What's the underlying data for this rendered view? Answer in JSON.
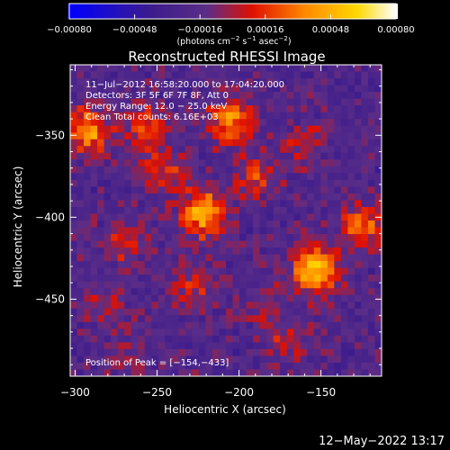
{
  "chart_data": {
    "type": "heatmap",
    "title": "Reconstructed RHESSI Image",
    "xlabel": "Heliocentric X (arcsec)",
    "ylabel": "Heliocentric Y (arcsec)",
    "xlim": [
      -303,
      -113
    ],
    "ylim": [
      -497,
      -307
    ],
    "x_ticks": [
      -300,
      -250,
      -200,
      -150
    ],
    "x_tick_labels": [
      "−300",
      "−250",
      "−200",
      "−150"
    ],
    "y_ticks": [
      -350,
      -400,
      -450
    ],
    "y_tick_labels": [
      "−350",
      "−400",
      "−450"
    ],
    "colorbar": {
      "min": -0.0008,
      "max": 0.0008,
      "ticks": [
        -0.0008,
        -0.00048,
        -0.00016,
        0.00016,
        0.00048,
        0.0008
      ],
      "tick_labels": [
        "−0.00080",
        "−0.00048",
        "−0.00016",
        "0.00016",
        "0.00048",
        "0.00080"
      ],
      "unit_parts": [
        "(photons cm",
        "−2",
        " s",
        "−1",
        " asec",
        "−2",
        ")"
      ],
      "colormap": [
        "#0000ff",
        "#3c1c8c",
        "#5a2d88",
        "#e01000",
        "#ff8800",
        "#ffd800",
        "#ffffff"
      ]
    },
    "annotations": [
      "11−Jul−2012 16:58:20.000 to 17:04:20.000",
      "Detectors: 3F 5F 6F 7F 8F, Att 0",
      "Energy Range: 12.0 − 25.0 keV",
      "Clean     Total counts: 6.16E+03"
    ],
    "peak_label": "Position of Peak = [−154,−433]",
    "peak": [
      -154,
      -433
    ],
    "sources": [
      {
        "x": -154,
        "y": -433,
        "intensity": 0.0008
      },
      {
        "x": -222,
        "y": -398,
        "intensity": 0.0007
      },
      {
        "x": -292,
        "y": -347,
        "intensity": 0.0006
      },
      {
        "x": -205,
        "y": -343,
        "intensity": 0.0006
      },
      {
        "x": -125,
        "y": -405,
        "intensity": 0.00048
      },
      {
        "x": -255,
        "y": -345,
        "intensity": 0.0004
      },
      {
        "x": -245,
        "y": -372,
        "intensity": 0.00032
      },
      {
        "x": -190,
        "y": -375,
        "intensity": 0.00032
      },
      {
        "x": -270,
        "y": -415,
        "intensity": 0.0003
      },
      {
        "x": -230,
        "y": -445,
        "intensity": 0.0003
      },
      {
        "x": -170,
        "y": -478,
        "intensity": 0.00024
      },
      {
        "x": -283,
        "y": -452,
        "intensity": 0.00024
      },
      {
        "x": -185,
        "y": -455,
        "intensity": 0.0002
      },
      {
        "x": -160,
        "y": -355,
        "intensity": 0.00022
      },
      {
        "x": -270,
        "y": -485,
        "intensity": 0.00018
      }
    ]
  },
  "footer": {
    "datetime": "12−May−2022 13:17"
  }
}
